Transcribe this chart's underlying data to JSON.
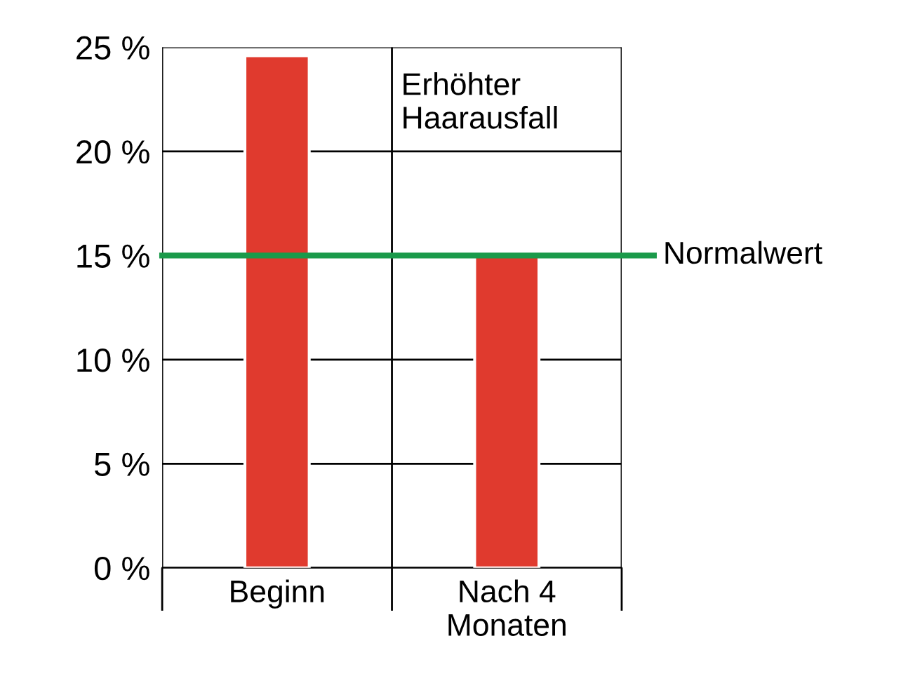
{
  "chart_data": {
    "type": "bar",
    "categories": [
      "Beginn",
      "Nach 4\nMonaten"
    ],
    "values": [
      24.6,
      15
    ],
    "color": "#e03a2e",
    "ylim": [
      0,
      25
    ],
    "yticks": [
      {
        "value": 0,
        "label": "0 %"
      },
      {
        "value": 5,
        "label": "5 %"
      },
      {
        "value": 10,
        "label": "10 %"
      },
      {
        "value": 15,
        "label": "15 %"
      },
      {
        "value": 20,
        "label": "20 %"
      },
      {
        "value": 25,
        "label": "25 %"
      }
    ],
    "grid": true,
    "ref_lines": [
      {
        "axis": "y",
        "value": 15,
        "label": "Normalwert",
        "color": "#1a9a4a"
      }
    ],
    "annotations": [
      "Erhöhter\nHaarausfall"
    ]
  }
}
